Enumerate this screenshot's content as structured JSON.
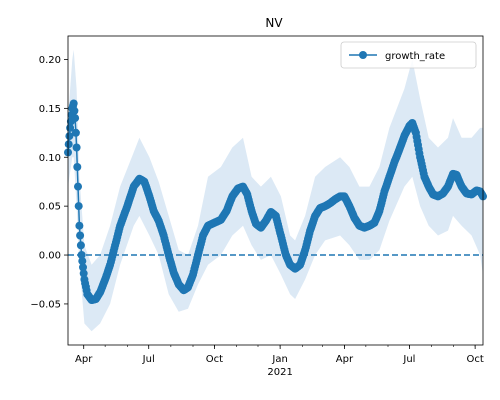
{
  "chart_data": {
    "type": "line",
    "title": "NV",
    "xlabel": "",
    "ylabel": "",
    "x_range": [
      "2020-03-10",
      "2021-10-12"
    ],
    "ylim": [
      -0.092,
      0.224
    ],
    "y_ticks": [
      -0.05,
      0.0,
      0.05,
      0.1,
      0.15,
      0.2
    ],
    "y_tick_labels": [
      "−0.05",
      "0.00",
      "0.05",
      "0.10",
      "0.15",
      "0.20"
    ],
    "x_ticks": [
      {
        "date": "2020-04-01",
        "label": "Apr"
      },
      {
        "date": "2020-07-01",
        "label": "Jul"
      },
      {
        "date": "2020-10-01",
        "label": "Oct"
      },
      {
        "date": "2021-01-01",
        "label": "Jan"
      },
      {
        "date": "2021-04-01",
        "label": "Apr"
      },
      {
        "date": "2021-07-01",
        "label": "Jul"
      },
      {
        "date": "2021-10-01",
        "label": "Oct"
      }
    ],
    "x_year_label": "2021",
    "legend": {
      "position": "top-right",
      "entries": [
        "growth_rate"
      ]
    },
    "reference_line": {
      "y": 0.0,
      "style": "dashed"
    },
    "colors": {
      "series": "#1f77b4",
      "band": "#dce9f5"
    },
    "series": [
      {
        "name": "growth_rate",
        "points": [
          [
            "2020-03-10",
            0.105
          ],
          [
            "2020-03-13",
            0.13
          ],
          [
            "2020-03-16",
            0.15
          ],
          [
            "2020-03-18",
            0.155
          ],
          [
            "2020-03-20",
            0.14
          ],
          [
            "2020-03-22",
            0.11
          ],
          [
            "2020-03-24",
            0.07
          ],
          [
            "2020-03-26",
            0.03
          ],
          [
            "2020-03-29",
            0.0
          ],
          [
            "2020-04-02",
            -0.025
          ],
          [
            "2020-04-06",
            -0.04
          ],
          [
            "2020-04-12",
            -0.046
          ],
          [
            "2020-04-18",
            -0.045
          ],
          [
            "2020-04-24",
            -0.038
          ],
          [
            "2020-05-01",
            -0.025
          ],
          [
            "2020-05-08",
            -0.01
          ],
          [
            "2020-05-15",
            0.01
          ],
          [
            "2020-05-22",
            0.03
          ],
          [
            "2020-06-01",
            0.05
          ],
          [
            "2020-06-10",
            0.07
          ],
          [
            "2020-06-18",
            0.078
          ],
          [
            "2020-06-25",
            0.075
          ],
          [
            "2020-07-02",
            0.06
          ],
          [
            "2020-07-08",
            0.045
          ],
          [
            "2020-07-15",
            0.035
          ],
          [
            "2020-07-22",
            0.02
          ],
          [
            "2020-07-29",
            0.0
          ],
          [
            "2020-08-05",
            -0.018
          ],
          [
            "2020-08-12",
            -0.03
          ],
          [
            "2020-08-19",
            -0.036
          ],
          [
            "2020-08-25",
            -0.033
          ],
          [
            "2020-09-01",
            -0.02
          ],
          [
            "2020-09-08",
            0.0
          ],
          [
            "2020-09-15",
            0.02
          ],
          [
            "2020-09-22",
            0.03
          ],
          [
            "2020-10-01",
            0.033
          ],
          [
            "2020-10-10",
            0.036
          ],
          [
            "2020-10-18",
            0.045
          ],
          [
            "2020-10-26",
            0.06
          ],
          [
            "2020-11-03",
            0.068
          ],
          [
            "2020-11-10",
            0.07
          ],
          [
            "2020-11-16",
            0.062
          ],
          [
            "2020-11-22",
            0.045
          ],
          [
            "2020-11-28",
            0.032
          ],
          [
            "2020-12-05",
            0.028
          ],
          [
            "2020-12-12",
            0.035
          ],
          [
            "2020-12-19",
            0.044
          ],
          [
            "2020-12-26",
            0.04
          ],
          [
            "2021-01-02",
            0.02
          ],
          [
            "2021-01-09",
            0.0
          ],
          [
            "2021-01-15",
            -0.01
          ],
          [
            "2021-01-22",
            -0.014
          ],
          [
            "2021-01-29",
            -0.01
          ],
          [
            "2021-02-05",
            0.005
          ],
          [
            "2021-02-12",
            0.025
          ],
          [
            "2021-02-19",
            0.04
          ],
          [
            "2021-02-26",
            0.048
          ],
          [
            "2021-03-05",
            0.05
          ],
          [
            "2021-03-12",
            0.053
          ],
          [
            "2021-03-19",
            0.057
          ],
          [
            "2021-03-26",
            0.06
          ],
          [
            "2021-04-01",
            0.06
          ],
          [
            "2021-04-08",
            0.05
          ],
          [
            "2021-04-15",
            0.038
          ],
          [
            "2021-04-22",
            0.03
          ],
          [
            "2021-04-29",
            0.028
          ],
          [
            "2021-05-06",
            0.03
          ],
          [
            "2021-05-13",
            0.033
          ],
          [
            "2021-05-20",
            0.045
          ],
          [
            "2021-05-27",
            0.065
          ],
          [
            "2021-06-03",
            0.08
          ],
          [
            "2021-06-10",
            0.095
          ],
          [
            "2021-06-17",
            0.108
          ],
          [
            "2021-06-24",
            0.122
          ],
          [
            "2021-07-01",
            0.132
          ],
          [
            "2021-07-05",
            0.135
          ],
          [
            "2021-07-10",
            0.125
          ],
          [
            "2021-07-16",
            0.1
          ],
          [
            "2021-07-22",
            0.08
          ],
          [
            "2021-07-28",
            0.07
          ],
          [
            "2021-08-03",
            0.062
          ],
          [
            "2021-08-10",
            0.06
          ],
          [
            "2021-08-17",
            0.063
          ],
          [
            "2021-08-24",
            0.07
          ],
          [
            "2021-08-31",
            0.083
          ],
          [
            "2021-09-05",
            0.082
          ],
          [
            "2021-09-12",
            0.07
          ],
          [
            "2021-09-19",
            0.063
          ],
          [
            "2021-09-26",
            0.062
          ],
          [
            "2021-10-03",
            0.066
          ],
          [
            "2021-10-08",
            0.065
          ],
          [
            "2021-10-12",
            0.06
          ]
        ]
      }
    ],
    "uncertainty_band": [
      [
        "2020-03-10",
        0.07,
        0.14
      ],
      [
        "2020-03-16",
        0.1,
        0.2
      ],
      [
        "2020-03-18",
        0.1,
        0.21
      ],
      [
        "2020-03-22",
        0.05,
        0.17
      ],
      [
        "2020-03-26",
        -0.01,
        0.08
      ],
      [
        "2020-04-02",
        -0.07,
        0.01
      ],
      [
        "2020-04-12",
        -0.078,
        -0.01
      ],
      [
        "2020-04-24",
        -0.07,
        0.0
      ],
      [
        "2020-05-08",
        -0.05,
        0.03
      ],
      [
        "2020-05-22",
        -0.01,
        0.07
      ],
      [
        "2020-06-10",
        0.03,
        0.105
      ],
      [
        "2020-06-18",
        0.04,
        0.12
      ],
      [
        "2020-07-02",
        0.02,
        0.1
      ],
      [
        "2020-07-15",
        0.0,
        0.075
      ],
      [
        "2020-07-29",
        -0.04,
        0.04
      ],
      [
        "2020-08-12",
        -0.058,
        0.005
      ],
      [
        "2020-08-25",
        -0.055,
        0.0
      ],
      [
        "2020-09-08",
        -0.03,
        0.03
      ],
      [
        "2020-09-22",
        -0.01,
        0.08
      ],
      [
        "2020-10-10",
        0.0,
        0.09
      ],
      [
        "2020-10-26",
        0.02,
        0.11
      ],
      [
        "2020-11-10",
        0.03,
        0.12
      ],
      [
        "2020-11-22",
        0.01,
        0.08
      ],
      [
        "2020-12-05",
        -0.005,
        0.07
      ],
      [
        "2020-12-19",
        0.0,
        0.08
      ],
      [
        "2021-01-02",
        -0.02,
        0.06
      ],
      [
        "2021-01-15",
        -0.04,
        0.02
      ],
      [
        "2021-01-22",
        -0.045,
        0.015
      ],
      [
        "2021-02-05",
        -0.025,
        0.04
      ],
      [
        "2021-02-19",
        0.0,
        0.08
      ],
      [
        "2021-03-05",
        0.015,
        0.09
      ],
      [
        "2021-03-26",
        0.02,
        0.1
      ],
      [
        "2021-04-08",
        0.01,
        0.09
      ],
      [
        "2021-04-22",
        -0.005,
        0.07
      ],
      [
        "2021-05-06",
        -0.005,
        0.07
      ],
      [
        "2021-05-20",
        0.005,
        0.09
      ],
      [
        "2021-06-03",
        0.035,
        0.13
      ],
      [
        "2021-06-24",
        0.07,
        0.17
      ],
      [
        "2021-07-05",
        0.08,
        0.2
      ],
      [
        "2021-07-16",
        0.05,
        0.16
      ],
      [
        "2021-07-28",
        0.03,
        0.12
      ],
      [
        "2021-08-10",
        0.02,
        0.11
      ],
      [
        "2021-08-24",
        0.025,
        0.12
      ],
      [
        "2021-08-31",
        0.04,
        0.14
      ],
      [
        "2021-09-12",
        0.03,
        0.12
      ],
      [
        "2021-09-26",
        0.02,
        0.12
      ],
      [
        "2021-10-08",
        0.0,
        0.13
      ],
      [
        "2021-10-12",
        -0.02,
        0.13
      ]
    ]
  }
}
